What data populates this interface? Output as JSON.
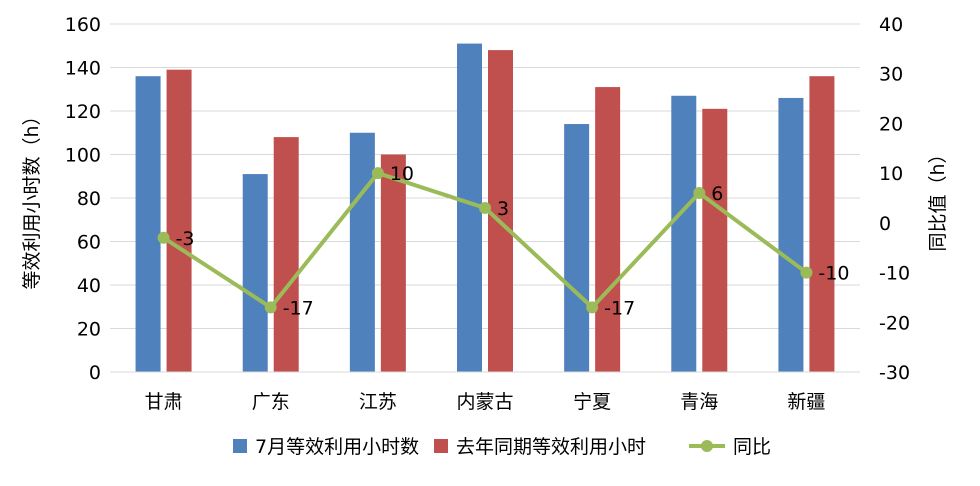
{
  "chart_data": {
    "type": "bar",
    "categories": [
      "甘肃",
      "广东",
      "江苏",
      "内蒙古",
      "宁夏",
      "青海",
      "新疆"
    ],
    "series": [
      {
        "name": "7月等效利用小时数",
        "type": "bar",
        "axis": "left",
        "color": "#4F81BD",
        "values": [
          136,
          91,
          110,
          151,
          114,
          127,
          126
        ]
      },
      {
        "name": "去年同期等效利用小时",
        "type": "bar",
        "axis": "left",
        "color": "#C0504D",
        "values": [
          139,
          108,
          100,
          148,
          131,
          121,
          136
        ]
      },
      {
        "name": "同比",
        "type": "line",
        "axis": "right",
        "color": "#9BBB59",
        "values": [
          -3,
          -17,
          10,
          3,
          -17,
          6,
          -10
        ],
        "data_labels": [
          "-3",
          "-17",
          "10",
          "3",
          "-17",
          "6",
          "-10"
        ]
      }
    ],
    "ylabel": "等效利用小时数（h）",
    "y2label": "同比值（h）",
    "ylim": [
      0,
      160
    ],
    "y2lim": [
      -30,
      40
    ],
    "yticks": [
      "0",
      "20",
      "40",
      "60",
      "80",
      "100",
      "120",
      "140",
      "160"
    ],
    "y2ticks": [
      "-30",
      "-20",
      "-10",
      "0",
      "10",
      "20",
      "30",
      "40"
    ],
    "grid": true,
    "legend_position": "bottom"
  }
}
